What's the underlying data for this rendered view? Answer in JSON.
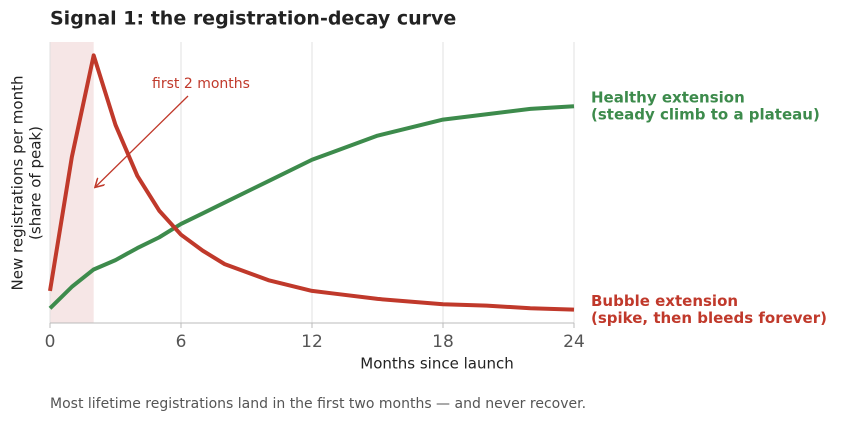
{
  "chart_data": {
    "type": "line",
    "title": "Signal 1: the registration-decay curve",
    "xlabel": "Months since launch",
    "ylabel": "New registrations per month",
    "ylabel_note": "(share of peak)",
    "caption": "Most lifetime registrations land in the first two months — and never recover.",
    "x": [
      0,
      1,
      2,
      3,
      4,
      5,
      6,
      7,
      8,
      10,
      12,
      13,
      15,
      18,
      20,
      22,
      24
    ],
    "xlim": [
      0,
      24
    ],
    "xticks": [
      0,
      6,
      12,
      18,
      24
    ],
    "ylim": [
      0,
      1.05
    ],
    "grid": true,
    "highlight_span": [
      0,
      2
    ],
    "annotation": {
      "text": "first 2 months",
      "x": 2.1,
      "y": 0.51
    },
    "series": [
      {
        "name": "Healthy extension",
        "note": "(steady climb to a plateau)",
        "color": "#3d8b4c",
        "values": [
          0.055,
          0.135,
          0.2,
          0.235,
          0.28,
          0.32,
          0.37,
          0.41,
          0.45,
          0.53,
          0.61,
          0.64,
          0.7,
          0.76,
          0.78,
          0.8,
          0.81
        ]
      },
      {
        "name": "Bubble extension",
        "note": "(spike, then bleeds forever)",
        "color": "#c0392b",
        "values": [
          0.12,
          0.62,
          1.0,
          0.74,
          0.55,
          0.42,
          0.33,
          0.27,
          0.22,
          0.16,
          0.12,
          0.11,
          0.09,
          0.07,
          0.065,
          0.055,
          0.05
        ]
      }
    ]
  }
}
